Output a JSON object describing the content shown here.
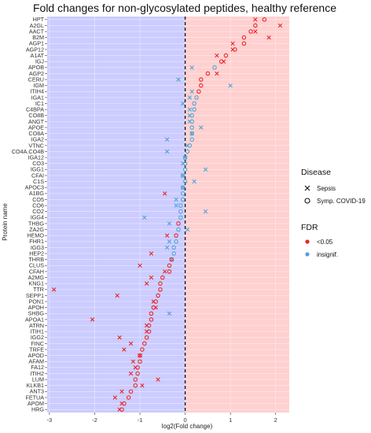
{
  "chart_data": {
    "type": "scatter",
    "title": "Fold changes for non-glycosylated peptides, healthy reference",
    "xlabel": "log2(Fold change)",
    "ylabel": "Protein name",
    "xlim": [
      -3.05,
      2.3
    ],
    "x_ticks": [
      -3,
      -2,
      -1,
      0,
      1,
      2
    ],
    "x_tick_labels": [
      "-3",
      "-2",
      "-1",
      "0",
      "1",
      "2"
    ],
    "reference_line_x": 0,
    "background": {
      "negative_side": "#ccccff",
      "positive_side": "#ffd0d0"
    },
    "proteins": [
      "HPT",
      "A2GL",
      "AACT",
      "B2M",
      "AGP1",
      "AGP12",
      "A1AT",
      "IGJ",
      "APOB",
      "AGP2",
      "CERU",
      "IGM",
      "ITIH4",
      "IGA1",
      "IC1",
      "C4BPA",
      "CO8B",
      "ANGT",
      "APOE",
      "CO8A",
      "IGA2",
      "VTNC",
      "CO4A.CO4B",
      "IGA12",
      "CO3",
      "IGG1",
      "CFAI",
      "C1S",
      "APOC3",
      "A1BG",
      "CO5",
      "CO6",
      "CO2",
      "IGG4",
      "THBG",
      "ZA2G",
      "HEMO",
      "FHR1",
      "IGG3",
      "HEP2",
      "THRB",
      "CLUS",
      "CFAH",
      "A2MG",
      "KNG1",
      "TTR",
      "SEPP1",
      "PON1",
      "APOH",
      "SHBG",
      "APOA1",
      "ATRN",
      "ITIH1",
      "IGG2",
      "FINC",
      "TRFE",
      "APOD",
      "AFAM",
      "FA12",
      "ITIH2",
      "LUM",
      "KLKB1",
      "ANT3",
      "FETUA",
      "APOM",
      "HRG"
    ],
    "series": [
      {
        "name": "Sepsis",
        "shape": "x",
        "values": [
          1.55,
          2.1,
          1.55,
          1.85,
          1.05,
          1.05,
          0.7,
          0.85,
          0.15,
          0.7,
          -0.15,
          1.0,
          0.15,
          0.1,
          -0.05,
          0.1,
          0.1,
          0.1,
          0.35,
          0.15,
          -0.4,
          0.05,
          -0.4,
          0.0,
          -0.05,
          0.45,
          -0.05,
          0.2,
          -0.05,
          -0.45,
          -0.2,
          -0.2,
          0.45,
          -0.9,
          -0.35,
          0.05,
          -0.4,
          -0.35,
          -0.4,
          -0.75,
          -0.3,
          -1.0,
          -0.45,
          -0.75,
          -0.85,
          -2.9,
          -1.5,
          -0.7,
          -0.65,
          -0.35,
          -2.05,
          -0.85,
          -0.85,
          -1.45,
          -1.2,
          -1.35,
          -1.0,
          -1.15,
          -1.1,
          -1.2,
          -0.6,
          -0.95,
          -1.4,
          -1.55,
          -1.4,
          -1.45
        ],
        "fdr": [
          "<0.05",
          "<0.05",
          "<0.05",
          "<0.05",
          "<0.05",
          "<0.05",
          "<0.05",
          "<0.05",
          "insignif.",
          "<0.05",
          "insignif.",
          "insignif.",
          "insignif.",
          "insignif.",
          "insignif.",
          "insignif.",
          "insignif.",
          "insignif.",
          "insignif.",
          "insignif.",
          "insignif.",
          "insignif.",
          "insignif.",
          "insignif.",
          "insignif.",
          "insignif.",
          "insignif.",
          "insignif.",
          "insignif.",
          "<0.05",
          "insignif.",
          "insignif.",
          "insignif.",
          "insignif.",
          "insignif.",
          "insignif.",
          "<0.05",
          "insignif.",
          "insignif.",
          "<0.05",
          "insignif.",
          "<0.05",
          "<0.05",
          "<0.05",
          "<0.05",
          "<0.05",
          "<0.05",
          "<0.05",
          "<0.05",
          "insignif.",
          "<0.05",
          "<0.05",
          "<0.05",
          "<0.05",
          "<0.05",
          "<0.05",
          "<0.05",
          "<0.05",
          "<0.05",
          "<0.05",
          "<0.05",
          "<0.05",
          "<0.05",
          "<0.05",
          "<0.05",
          "<0.05"
        ]
      },
      {
        "name": "Symp. COVID-19",
        "shape": "o",
        "values": [
          1.75,
          1.55,
          1.45,
          1.3,
          1.3,
          1.1,
          0.9,
          0.8,
          0.65,
          0.5,
          0.35,
          0.35,
          0.3,
          0.25,
          0.2,
          0.2,
          0.15,
          0.15,
          0.15,
          0.15,
          0.15,
          0.1,
          0.05,
          0.0,
          0.0,
          0.0,
          -0.05,
          0.0,
          -0.05,
          -0.05,
          -0.05,
          -0.1,
          -0.1,
          -0.1,
          -0.15,
          -0.15,
          -0.2,
          -0.2,
          -0.25,
          -0.25,
          -0.3,
          -0.35,
          -0.35,
          -0.5,
          -0.55,
          -0.55,
          -0.6,
          -0.65,
          -0.7,
          -0.75,
          -0.75,
          -0.8,
          -0.8,
          -0.85,
          -0.9,
          -0.95,
          -1.0,
          -1.0,
          -1.05,
          -1.05,
          -1.1,
          -1.1,
          -1.2,
          -1.25,
          -1.35,
          -1.4
        ],
        "fdr": [
          "<0.05",
          "<0.05",
          "<0.05",
          "<0.05",
          "<0.05",
          "<0.05",
          "<0.05",
          "<0.05",
          "insignif.",
          "<0.05",
          "<0.05",
          "<0.05",
          "<0.05",
          "insignif.",
          "insignif.",
          "insignif.",
          "insignif.",
          "insignif.",
          "insignif.",
          "insignif.",
          "insignif.",
          "insignif.",
          "insignif.",
          "insignif.",
          "insignif.",
          "insignif.",
          "insignif.",
          "insignif.",
          "insignif.",
          "insignif.",
          "insignif.",
          "insignif.",
          "insignif.",
          "insignif.",
          "<0.05",
          "insignif.",
          "<0.05",
          "insignif.",
          "insignif.",
          "insignif.",
          "<0.05",
          "<0.05",
          "<0.05",
          "<0.05",
          "<0.05",
          "<0.05",
          "<0.05",
          "<0.05",
          "<0.05",
          "<0.05",
          "<0.05",
          "<0.05",
          "<0.05",
          "<0.05",
          "<0.05",
          "<0.05",
          "<0.05",
          "<0.05",
          "<0.05",
          "<0.05",
          "<0.05",
          "<0.05",
          "<0.05",
          "<0.05",
          "<0.05",
          "<0.05"
        ]
      }
    ],
    "legend": {
      "placement": "right",
      "disease_title": "Disease",
      "disease_items": [
        {
          "label": "Sepsis",
          "shape": "x"
        },
        {
          "label": "Symp. COVID-19",
          "shape": "o"
        }
      ],
      "fdr_title": "FDR",
      "fdr_items": [
        {
          "label": "<0.05",
          "color": "#e8252a"
        },
        {
          "label": "insignif.",
          "color": "#4fa3d8"
        }
      ]
    },
    "colors": {
      "significant": "#e8252a",
      "insignificant": "#4fa3d8"
    }
  }
}
